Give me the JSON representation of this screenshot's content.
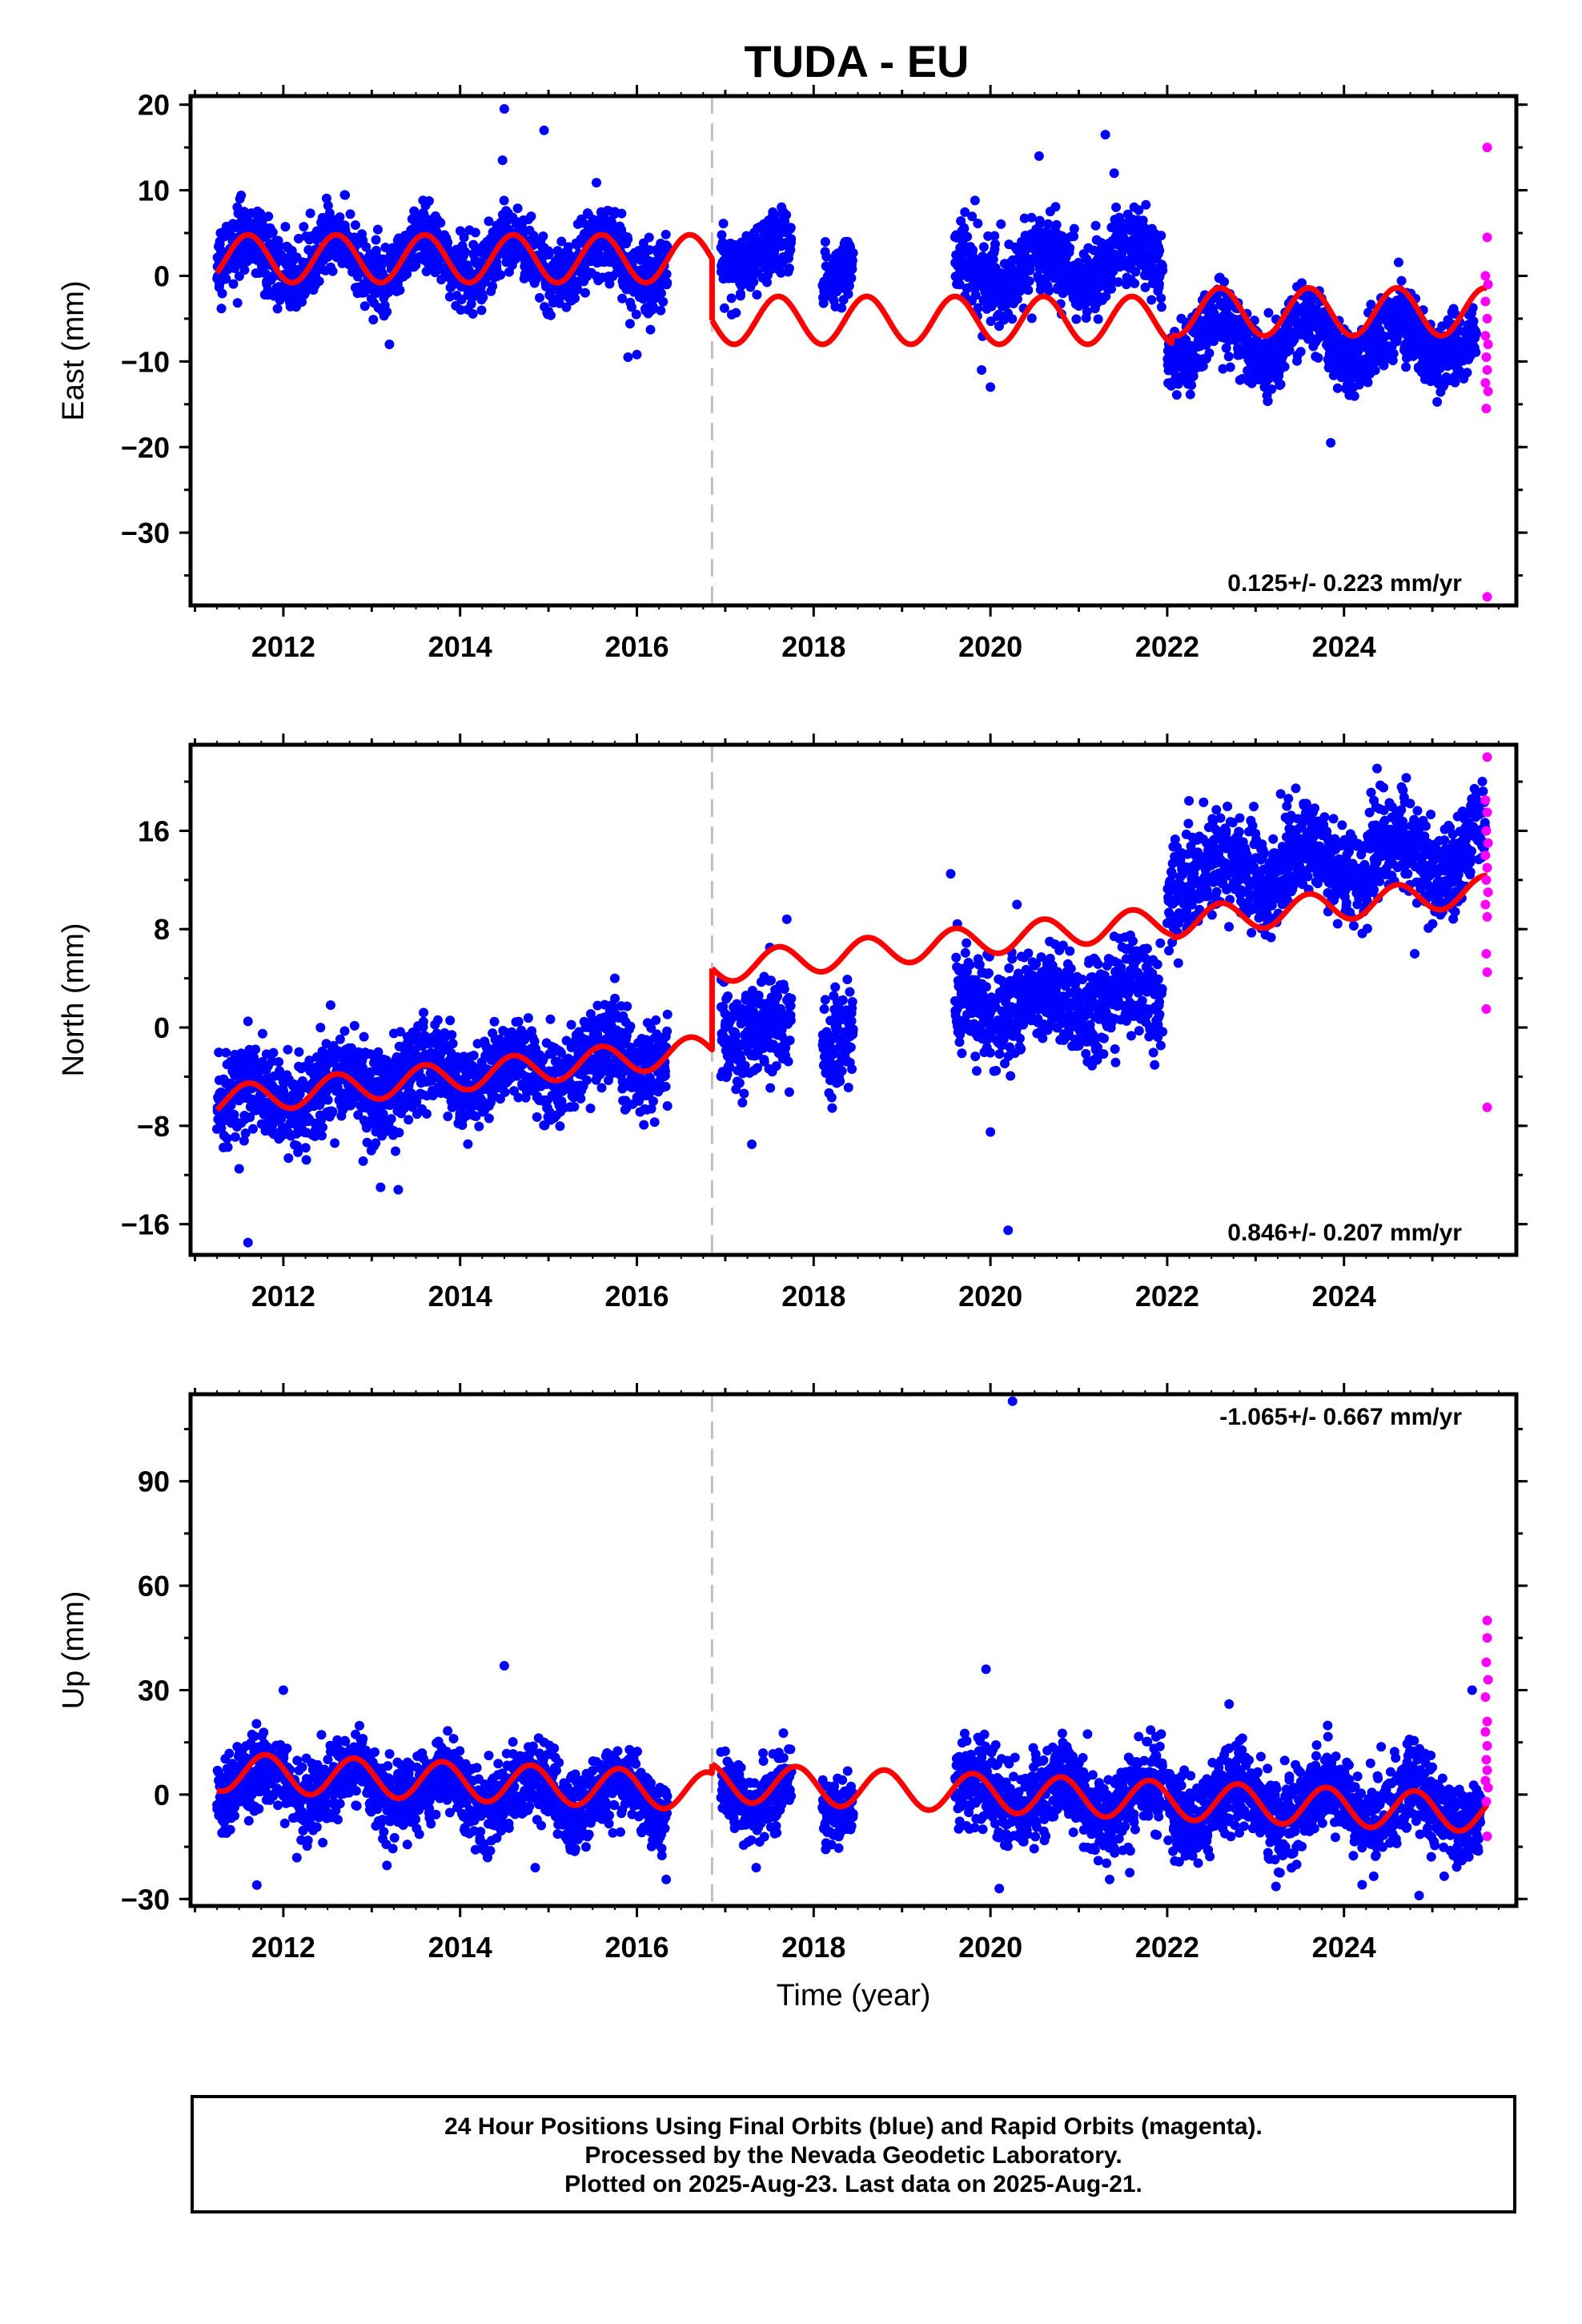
{
  "title": "TUDA - EU",
  "xlabel": "Time (year)",
  "footer": {
    "line1": "24 Hour Positions Using Final Orbits (blue) and Rapid Orbits (magenta).",
    "line2": "Processed by the Nevada Geodetic Laboratory.",
    "line3": "Plotted on 2025-Aug-23. Last data on 2025-Aug-21."
  },
  "colors": {
    "final": "#0000ff",
    "rapid": "#ff00ff",
    "model": "#ff0000",
    "break": "#c0c0c0"
  },
  "chart_data": [
    {
      "type": "scatter",
      "ylabel": "East (mm)",
      "rate": "0.125+/- 0.223 mm/yr",
      "xlim": [
        2010.95,
        2025.95
      ],
      "ylim": [
        -38.5,
        21
      ],
      "yticks": [
        20,
        10,
        0,
        -10,
        -20,
        -30
      ],
      "yminor_step": 5,
      "xticks": [
        2012,
        2014,
        2016,
        2018,
        2020,
        2022,
        2024
      ],
      "break_x": 2016.85,
      "final_segments": [
        {
          "x0": 2011.25,
          "x1": 2016.35,
          "mean": 2.0,
          "amp": 2.5,
          "phase": 0.35,
          "trend": 0,
          "sd": 2.0
        },
        {
          "x0": 2016.95,
          "x1": 2017.75,
          "mean": 2.5,
          "amp": 1.5,
          "phase": 0.35,
          "trend": 0,
          "sd": 2.0
        },
        {
          "x0": 2018.1,
          "x1": 2018.45,
          "mean": 0.5,
          "amp": 1.0,
          "phase": 0.35,
          "trend": 0,
          "sd": 2.0
        },
        {
          "x0": 2019.6,
          "x1": 2021.95,
          "mean": 0.5,
          "amp": 2.0,
          "phase": 0.35,
          "trend": 0.5,
          "sd": 2.3
        },
        {
          "x0": 2022.0,
          "x1": 2025.1,
          "mean": -7.5,
          "amp": 2.5,
          "phase": 0.35,
          "trend": 0,
          "sd": 2.0
        },
        {
          "x0": 2025.1,
          "x1": 2025.5,
          "mean": -8.0,
          "amp": 1.5,
          "phase": 0.35,
          "trend": 0,
          "sd": 2.0
        }
      ],
      "final_outliers": [
        {
          "x": 2014.5,
          "y": 19.5
        },
        {
          "x": 2014.48,
          "y": 13.5
        },
        {
          "x": 2014.95,
          "y": 17
        },
        {
          "x": 2013.2,
          "y": -8
        },
        {
          "x": 2015.9,
          "y": -9.5
        },
        {
          "x": 2016.0,
          "y": -9.2
        },
        {
          "x": 2020.55,
          "y": 14
        },
        {
          "x": 2021.3,
          "y": 16.5
        },
        {
          "x": 2020.0,
          "y": -13
        },
        {
          "x": 2023.85,
          "y": -19.5
        },
        {
          "x": 2019.9,
          "y": -11
        },
        {
          "x": 2021.4,
          "y": 12
        }
      ],
      "rapid_points": [
        {
          "x": 2025.62,
          "y": 15
        },
        {
          "x": 2025.62,
          "y": 4.5
        },
        {
          "x": 2025.6,
          "y": 0
        },
        {
          "x": 2025.63,
          "y": -1
        },
        {
          "x": 2025.6,
          "y": -3
        },
        {
          "x": 2025.62,
          "y": -5
        },
        {
          "x": 2025.6,
          "y": -7
        },
        {
          "x": 2025.63,
          "y": -8
        },
        {
          "x": 2025.61,
          "y": -9.5
        },
        {
          "x": 2025.62,
          "y": -11
        },
        {
          "x": 2025.6,
          "y": -12.5
        },
        {
          "x": 2025.63,
          "y": -13.5
        },
        {
          "x": 2025.61,
          "y": -15.5
        },
        {
          "x": 2025.62,
          "y": -37.5
        }
      ],
      "model_segments": [
        {
          "x0": 2011.25,
          "x1": 2016.85,
          "base": 2.0,
          "trend": 0.0,
          "amp": 2.8,
          "phase": 0.35
        },
        {
          "x0": 2016.85,
          "x1": 2022.05,
          "base": -5.2,
          "trend": 0.0,
          "amp": 2.8,
          "phase": 0.35
        },
        {
          "x0": 2022.05,
          "x1": 2025.62,
          "base": -4.2,
          "trend": 0.0,
          "amp": 2.8,
          "phase": 0.35
        }
      ]
    },
    {
      "type": "scatter",
      "ylabel": "North (mm)",
      "rate": "0.846+/- 0.207 mm/yr",
      "xlim": [
        2010.95,
        2025.95
      ],
      "ylim": [
        -18.5,
        23
      ],
      "yticks": [
        16,
        8,
        0,
        -8,
        -16
      ],
      "yminor_step": 4,
      "xticks": [
        2012,
        2014,
        2016,
        2018,
        2020,
        2022,
        2024
      ],
      "break_x": 2016.85,
      "final_segments": [
        {
          "x0": 2011.25,
          "x1": 2016.35,
          "mean": -6.0,
          "amp": 1.3,
          "phase": 0.35,
          "trend": 0.75,
          "sd": 1.8
        },
        {
          "x0": 2016.95,
          "x1": 2017.75,
          "mean": -0.5,
          "amp": 1.0,
          "phase": 0.35,
          "trend": 0.5,
          "sd": 2.0
        },
        {
          "x0": 2018.1,
          "x1": 2018.45,
          "mean": -0.5,
          "amp": 1.0,
          "phase": 0.35,
          "trend": 0,
          "sd": 2.0
        },
        {
          "x0": 2019.6,
          "x1": 2021.95,
          "mean": 1.5,
          "amp": 1.2,
          "phase": 0.35,
          "trend": 0.4,
          "sd": 2.0
        },
        {
          "x0": 2022.0,
          "x1": 2025.6,
          "mean": 12.5,
          "amp": 1.5,
          "phase": 0.35,
          "trend": 0.55,
          "sd": 2.0
        }
      ],
      "final_outliers": [
        {
          "x": 2011.6,
          "y": -17.5
        },
        {
          "x": 2013.1,
          "y": -13
        },
        {
          "x": 2013.3,
          "y": -13.2
        },
        {
          "x": 2011.5,
          "y": -11.5
        },
        {
          "x": 2020.2,
          "y": -16.5
        },
        {
          "x": 2019.55,
          "y": 12.5
        },
        {
          "x": 2015.75,
          "y": 4
        },
        {
          "x": 2011.6,
          "y": 0.5
        },
        {
          "x": 2024.8,
          "y": 6
        },
        {
          "x": 2020.0,
          "y": -8.5
        },
        {
          "x": 2017.3,
          "y": -9.5
        },
        {
          "x": 2020.3,
          "y": 10
        }
      ],
      "rapid_points": [
        {
          "x": 2025.62,
          "y": 22
        },
        {
          "x": 2025.6,
          "y": 18.5
        },
        {
          "x": 2025.62,
          "y": 17.5
        },
        {
          "x": 2025.61,
          "y": 16
        },
        {
          "x": 2025.63,
          "y": 15
        },
        {
          "x": 2025.6,
          "y": 14
        },
        {
          "x": 2025.62,
          "y": 13
        },
        {
          "x": 2025.61,
          "y": 12
        },
        {
          "x": 2025.63,
          "y": 11
        },
        {
          "x": 2025.6,
          "y": 10
        },
        {
          "x": 2025.62,
          "y": 9
        },
        {
          "x": 2025.61,
          "y": 6
        },
        {
          "x": 2025.62,
          "y": 4.5
        },
        {
          "x": 2025.61,
          "y": 1.5
        },
        {
          "x": 2025.62,
          "y": -6.5
        }
      ],
      "model_segments": [
        {
          "x0": 2011.25,
          "x1": 2016.85,
          "base": -6.0,
          "trend": 0.75,
          "amp": 1.2,
          "phase": 0.35
        },
        {
          "x0": 2016.85,
          "x1": 2022.05,
          "base": 4.8,
          "trend": 0.75,
          "amp": 1.2,
          "phase": 0.35
        },
        {
          "x0": 2022.05,
          "x1": 2025.62,
          "base": 8.5,
          "trend": 0.75,
          "amp": 1.2,
          "phase": 0.35
        }
      ]
    },
    {
      "type": "scatter",
      "ylabel": "Up (mm)",
      "rate": "-1.065+/- 0.667 mm/yr",
      "xlim": [
        2010.95,
        2025.95
      ],
      "ylim": [
        -32,
        115
      ],
      "yticks": [
        90,
        60,
        30,
        0,
        -30
      ],
      "yminor_step": 15,
      "xticks": [
        2012,
        2014,
        2016,
        2018,
        2020,
        2022,
        2024
      ],
      "break_x": 2016.85,
      "final_segments": [
        {
          "x0": 2011.25,
          "x1": 2016.35,
          "mean": 4.0,
          "amp": 5.0,
          "phase": 0.55,
          "trend": -1.0,
          "sd": 5.5
        },
        {
          "x0": 2016.95,
          "x1": 2017.75,
          "mean": 1.0,
          "amp": 4.0,
          "phase": 0.55,
          "trend": 0,
          "sd": 5.0
        },
        {
          "x0": 2018.1,
          "x1": 2018.45,
          "mean": -2.0,
          "amp": 3.0,
          "phase": 0.55,
          "trend": 0,
          "sd": 4.5
        },
        {
          "x0": 2019.6,
          "x1": 2021.95,
          "mean": 0.0,
          "amp": 5.0,
          "phase": 0.55,
          "trend": -1.0,
          "sd": 6.0
        },
        {
          "x0": 2022.0,
          "x1": 2025.55,
          "mean": -2.0,
          "amp": 5.5,
          "phase": 0.55,
          "trend": -0.5,
          "sd": 6.0
        }
      ],
      "final_outliers": [
        {
          "x": 2020.25,
          "y": 113
        },
        {
          "x": 2014.5,
          "y": 37
        },
        {
          "x": 2019.95,
          "y": 36
        },
        {
          "x": 2011.7,
          "y": -26
        },
        {
          "x": 2020.1,
          "y": -27
        },
        {
          "x": 2024.85,
          "y": -29
        },
        {
          "x": 2025.45,
          "y": 30
        },
        {
          "x": 2012.0,
          "y": 30
        },
        {
          "x": 2022.7,
          "y": 26
        },
        {
          "x": 2014.85,
          "y": -21
        },
        {
          "x": 2017.35,
          "y": -21
        }
      ],
      "rapid_points": [
        {
          "x": 2025.62,
          "y": 50
        },
        {
          "x": 2025.62,
          "y": 45
        },
        {
          "x": 2025.61,
          "y": 38
        },
        {
          "x": 2025.63,
          "y": 33
        },
        {
          "x": 2025.6,
          "y": 28
        },
        {
          "x": 2025.62,
          "y": 21
        },
        {
          "x": 2025.6,
          "y": 18
        },
        {
          "x": 2025.62,
          "y": 14
        },
        {
          "x": 2025.61,
          "y": 10
        },
        {
          "x": 2025.62,
          "y": 7
        },
        {
          "x": 2025.6,
          "y": 4
        },
        {
          "x": 2025.63,
          "y": 2
        },
        {
          "x": 2025.61,
          "y": -2
        },
        {
          "x": 2025.62,
          "y": -12
        }
      ],
      "model_segments": [
        {
          "x0": 2011.25,
          "x1": 2016.85,
          "base": 6.5,
          "trend": -1.0,
          "amp": 5.5,
          "phase": 0.55
        },
        {
          "x0": 2016.85,
          "x1": 2025.62,
          "base": 3.5,
          "trend": -1.0,
          "amp": 5.5,
          "phase": 0.55
        }
      ]
    }
  ]
}
